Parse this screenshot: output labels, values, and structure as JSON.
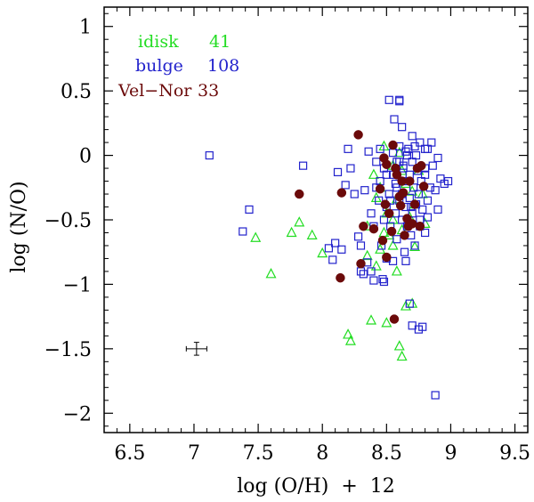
{
  "chart_data": {
    "type": "scatter",
    "xlabel": "log (O/H)  +  12",
    "ylabel": "log (N/O)",
    "xlim": [
      6.3,
      9.6
    ],
    "ylim": [
      -2.15,
      1.15
    ],
    "x_ticks": [
      6.5,
      7,
      7.5,
      8,
      8.5,
      9,
      9.5
    ],
    "x_tick_labels": [
      "6.5",
      "7",
      "7.5",
      "8",
      "8.5",
      "9",
      "9.5"
    ],
    "y_ticks": [
      1,
      0.5,
      0,
      -0.5,
      -1,
      -1.5,
      -2
    ],
    "y_tick_labels": [
      "1",
      "0.5",
      "0",
      "−0.5",
      "−1",
      "−1.5",
      "−2"
    ],
    "legend_position": "top-left",
    "legend": [
      {
        "name": "idisk",
        "count": "41",
        "color": "#22dd22"
      },
      {
        "name": "bulge",
        "count": "108",
        "color": "#2222cc"
      },
      {
        "name": "Vel−Nor",
        "count": "33",
        "color": "#6b0a0a"
      }
    ],
    "error_bar": {
      "x": 7.02,
      "y": -1.5,
      "xerr": 0.08,
      "yerr": 0.05
    },
    "series": [
      {
        "name": "idisk",
        "marker": "triangle-open",
        "color": "#22dd22",
        "points": [
          [
            7.48,
            -0.64
          ],
          [
            7.6,
            -0.92
          ],
          [
            7.76,
            -0.6
          ],
          [
            7.82,
            -0.52
          ],
          [
            7.92,
            -0.62
          ],
          [
            8.0,
            -0.76
          ],
          [
            8.2,
            -1.39
          ],
          [
            8.22,
            -1.44
          ],
          [
            8.35,
            -0.55
          ],
          [
            8.38,
            -1.28
          ],
          [
            8.4,
            -0.15
          ],
          [
            8.42,
            -0.86
          ],
          [
            8.45,
            -0.73
          ],
          [
            8.48,
            0.07
          ],
          [
            8.5,
            -0.45
          ],
          [
            8.52,
            -0.62
          ],
          [
            8.55,
            -0.08
          ],
          [
            8.58,
            -0.34
          ],
          [
            8.6,
            -1.48
          ],
          [
            8.62,
            -1.56
          ],
          [
            8.62,
            -0.58
          ],
          [
            8.65,
            -0.22
          ],
          [
            8.7,
            -1.15
          ],
          [
            8.72,
            -0.38
          ],
          [
            8.72,
            -0.71
          ],
          [
            8.75,
            -0.12
          ],
          [
            8.8,
            -0.53
          ],
          [
            8.45,
            -0.25
          ],
          [
            8.55,
            -0.7
          ],
          [
            8.5,
            -1.3
          ],
          [
            8.68,
            -0.48
          ],
          [
            8.6,
            0.02
          ],
          [
            8.48,
            -0.6
          ],
          [
            8.7,
            -0.28
          ],
          [
            8.65,
            -1.17
          ],
          [
            8.58,
            -0.9
          ],
          [
            8.42,
            -0.33
          ],
          [
            8.78,
            -0.3
          ],
          [
            8.55,
            -0.5
          ],
          [
            8.62,
            -0.12
          ],
          [
            8.35,
            -0.78
          ]
        ]
      },
      {
        "name": "bulge",
        "marker": "square-open",
        "color": "#2222cc",
        "points": [
          [
            7.12,
            0.0
          ],
          [
            7.38,
            -0.59
          ],
          [
            7.43,
            -0.42
          ],
          [
            7.85,
            -0.08
          ],
          [
            8.05,
            -0.72
          ],
          [
            8.08,
            -0.81
          ],
          [
            8.1,
            -0.68
          ],
          [
            8.12,
            -0.13
          ],
          [
            8.15,
            -0.73
          ],
          [
            8.18,
            -0.23
          ],
          [
            8.2,
            0.05
          ],
          [
            8.22,
            -0.1
          ],
          [
            8.25,
            -0.3
          ],
          [
            8.28,
            -0.63
          ],
          [
            8.3,
            -0.9
          ],
          [
            8.32,
            -0.92
          ],
          [
            8.33,
            -0.27
          ],
          [
            8.35,
            -0.83
          ],
          [
            8.36,
            0.03
          ],
          [
            8.38,
            -0.45
          ],
          [
            8.4,
            -0.97
          ],
          [
            8.4,
            -0.55
          ],
          [
            8.42,
            -0.05
          ],
          [
            8.44,
            -0.35
          ],
          [
            8.45,
            -0.2
          ],
          [
            8.46,
            -0.7
          ],
          [
            8.47,
            -0.96
          ],
          [
            8.48,
            -0.98
          ],
          [
            8.48,
            -0.1
          ],
          [
            8.5,
            -0.4
          ],
          [
            8.5,
            -0.8
          ],
          [
            8.52,
            0.43
          ],
          [
            8.52,
            -0.3
          ],
          [
            8.53,
            -0.55
          ],
          [
            8.55,
            -0.15
          ],
          [
            8.55,
            -0.82
          ],
          [
            8.56,
            0.28
          ],
          [
            8.57,
            -0.45
          ],
          [
            8.58,
            -0.25
          ],
          [
            8.58,
            -0.65
          ],
          [
            8.6,
            0.43
          ],
          [
            8.6,
            0.42
          ],
          [
            8.6,
            0.07
          ],
          [
            8.6,
            -0.05
          ],
          [
            8.62,
            0.22
          ],
          [
            8.62,
            -0.5
          ],
          [
            8.62,
            -0.3
          ],
          [
            8.63,
            -0.1
          ],
          [
            8.64,
            -0.75
          ],
          [
            8.65,
            0.03
          ],
          [
            8.65,
            -0.4
          ],
          [
            8.66,
            -0.2
          ],
          [
            8.66,
            -0.55
          ],
          [
            8.67,
            0.05
          ],
          [
            8.68,
            -0.15
          ],
          [
            8.68,
            -0.33
          ],
          [
            8.69,
            -0.62
          ],
          [
            8.7,
            0.15
          ],
          [
            8.7,
            -0.45
          ],
          [
            8.7,
            -0.05
          ],
          [
            8.71,
            -0.25
          ],
          [
            8.72,
            -0.7
          ],
          [
            8.73,
            0.0
          ],
          [
            8.73,
            -0.38
          ],
          [
            8.74,
            -0.12
          ],
          [
            8.75,
            -1.35
          ],
          [
            8.75,
            -0.3
          ],
          [
            8.76,
            0.1
          ],
          [
            8.76,
            -0.5
          ],
          [
            8.77,
            -0.2
          ],
          [
            8.78,
            -0.42
          ],
          [
            8.78,
            -1.33
          ],
          [
            8.8,
            -0.15
          ],
          [
            8.8,
            0.05
          ],
          [
            8.8,
            -0.6
          ],
          [
            8.82,
            -0.35
          ],
          [
            8.82,
            -0.48
          ],
          [
            8.84,
            -0.25
          ],
          [
            8.85,
            0.1
          ],
          [
            8.86,
            -0.08
          ],
          [
            8.88,
            -0.27
          ],
          [
            8.88,
            -1.86
          ],
          [
            8.9,
            -0.02
          ],
          [
            8.9,
            -0.42
          ],
          [
            8.92,
            -0.18
          ],
          [
            8.95,
            -0.22
          ],
          [
            8.98,
            -0.2
          ],
          [
            8.7,
            -1.32
          ],
          [
            8.68,
            -1.15
          ],
          [
            8.55,
            0.02
          ],
          [
            8.45,
            0.05
          ],
          [
            8.42,
            -0.25
          ],
          [
            8.5,
            -0.15
          ],
          [
            8.63,
            -0.08
          ],
          [
            8.72,
            0.07
          ],
          [
            8.58,
            -0.05
          ],
          [
            8.48,
            -0.5
          ],
          [
            8.38,
            -0.9
          ],
          [
            8.3,
            -0.7
          ],
          [
            8.65,
            -0.82
          ],
          [
            8.6,
            -0.35
          ],
          [
            8.8,
            -0.1
          ],
          [
            8.76,
            -0.55
          ],
          [
            8.53,
            -0.35
          ],
          [
            8.66,
            0.0
          ],
          [
            8.82,
            0.05
          ],
          [
            8.57,
            -0.22
          ],
          [
            8.69,
            -0.4
          ]
        ]
      },
      {
        "name": "Vel−Nor",
        "marker": "circle-filled",
        "color": "#6b0a0a",
        "points": [
          [
            7.82,
            -0.3
          ],
          [
            8.14,
            -0.95
          ],
          [
            8.15,
            -0.29
          ],
          [
            8.28,
            0.16
          ],
          [
            8.3,
            -0.84
          ],
          [
            8.32,
            -0.55
          ],
          [
            8.4,
            -0.57
          ],
          [
            8.45,
            -0.26
          ],
          [
            8.47,
            -0.66
          ],
          [
            8.48,
            -0.02
          ],
          [
            8.49,
            -0.38
          ],
          [
            8.5,
            -0.79
          ],
          [
            8.5,
            -0.07
          ],
          [
            8.52,
            -0.45
          ],
          [
            8.54,
            -0.59
          ],
          [
            8.55,
            0.08
          ],
          [
            8.56,
            -1.27
          ],
          [
            8.57,
            -0.1
          ],
          [
            8.58,
            -0.15
          ],
          [
            8.6,
            -0.32
          ],
          [
            8.61,
            -0.39
          ],
          [
            8.62,
            -0.2
          ],
          [
            8.63,
            -0.29
          ],
          [
            8.64,
            -0.62
          ],
          [
            8.66,
            -0.49
          ],
          [
            8.67,
            -0.55
          ],
          [
            8.68,
            -0.2
          ],
          [
            8.7,
            -0.53
          ],
          [
            8.72,
            -0.38
          ],
          [
            8.74,
            -0.1
          ],
          [
            8.76,
            -0.55
          ],
          [
            8.77,
            -0.08
          ],
          [
            8.79,
            -0.24
          ]
        ]
      }
    ]
  }
}
